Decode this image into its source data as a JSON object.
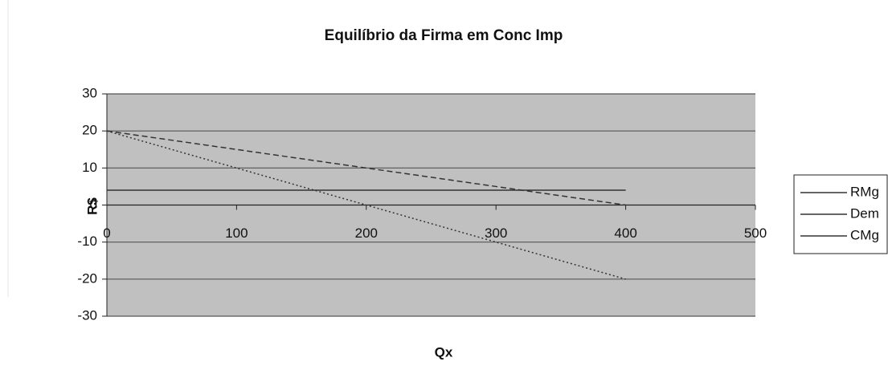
{
  "chart_data": {
    "type": "line",
    "title": "Equilíbrio da Firma em Conc Imp",
    "x_label": "Qx",
    "y_label": "R$",
    "series": [
      {
        "name": "RMg",
        "color": "#333333",
        "style": "dotted",
        "x": [
          0,
          400
        ],
        "values": [
          20,
          -20
        ]
      },
      {
        "name": "Dem",
        "color": "#333333",
        "style": "dashed",
        "x": [
          0,
          400
        ],
        "values": [
          20,
          0
        ]
      },
      {
        "name": "CMg",
        "color": "#333333",
        "style": "solid",
        "x": [
          0,
          400
        ],
        "values": [
          4,
          4
        ]
      }
    ],
    "xlim": [
      0,
      500
    ],
    "xticks": [
      0,
      100,
      200,
      300,
      400,
      500
    ],
    "ylim": [
      -30,
      30
    ],
    "yticks": [
      -30,
      -20,
      -10,
      0,
      10,
      20,
      30
    ],
    "grid": true,
    "legend": "right"
  }
}
